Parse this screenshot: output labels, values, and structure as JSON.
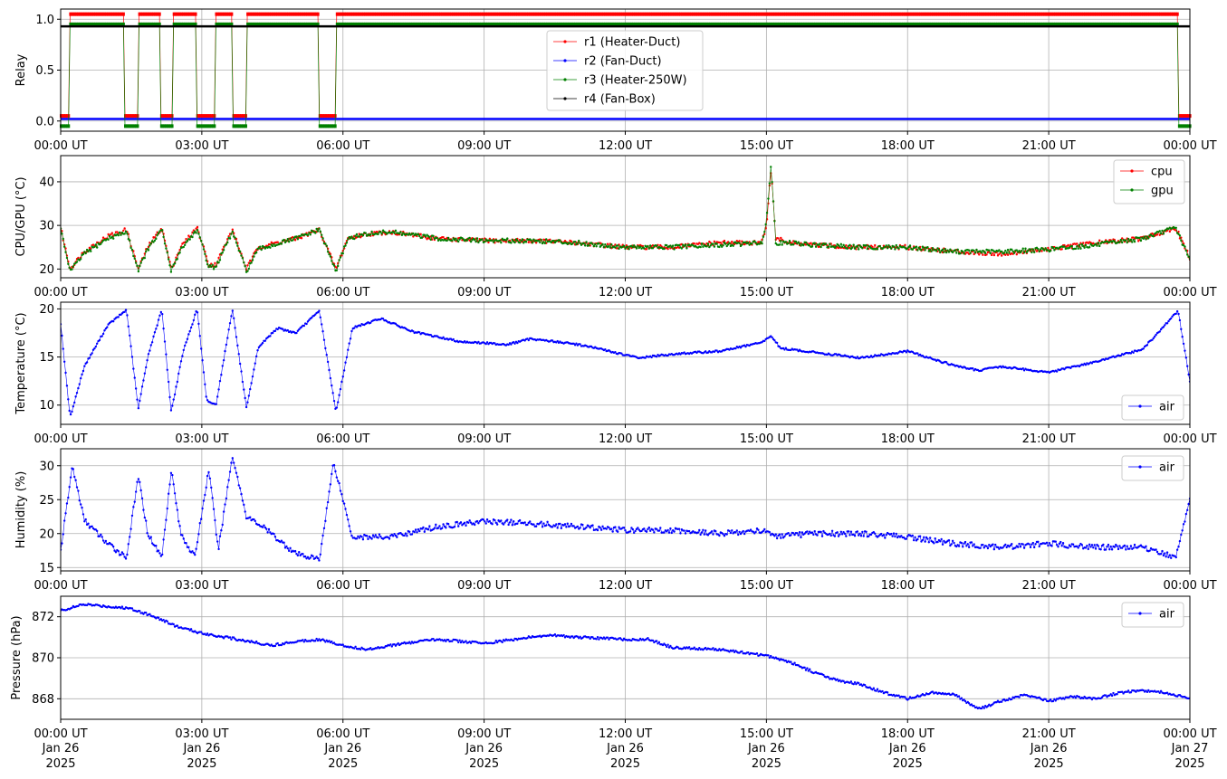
{
  "x_ticks": [
    "00:00 UT",
    "03:00 UT",
    "06:00 UT",
    "09:00 UT",
    "12:00 UT",
    "15:00 UT",
    "18:00 UT",
    "21:00 UT",
    "00:00 UT"
  ],
  "x_date_lines": [
    "Jan 26",
    "Jan 26",
    "Jan 26",
    "Jan 26",
    "Jan 26",
    "Jan 26",
    "Jan 26",
    "Jan 26",
    "Jan 27"
  ],
  "x_year_lines": [
    "2025",
    "2025",
    "2025",
    "2025",
    "2025",
    "2025",
    "2025",
    "2025",
    "2025"
  ],
  "colors": {
    "red": "#ff0000",
    "blue": "#0000ff",
    "green": "#008000",
    "black": "#000000",
    "grid": "#b0b0b0"
  },
  "chart_data": [
    {
      "type": "line",
      "ylabel": "Relay",
      "ylim": [
        -0.1,
        1.1
      ],
      "yticks": [
        0.0,
        0.5,
        1.0
      ],
      "ytick_labels": [
        "0.0",
        "0.5",
        "1.0"
      ],
      "grid": true,
      "legend_placement": "top-center",
      "x_unit": "hours since 00:00 UT Jan 26 2025",
      "xlim": [
        0,
        24
      ],
      "series": [
        {
          "name": "r1 (Heater-Duct)",
          "color": "#ff0000",
          "on_value": 1.05,
          "off_value": 0.05,
          "off_intervals": [
            [
              0,
              0.17
            ],
            [
              1.35,
              1.65
            ],
            [
              2.1,
              2.4
            ],
            [
              2.9,
              3.3
            ],
            [
              3.65,
              3.95
            ],
            [
              5.5,
              5.85
            ],
            [
              23.75,
              24
            ]
          ]
        },
        {
          "name": "r2 (Fan-Duct)",
          "color": "#0000ff",
          "constant": 0.02
        },
        {
          "name": "r3 (Heater-250W)",
          "color": "#008000",
          "on_value": 0.95,
          "off_value": -0.05,
          "off_intervals": [
            [
              0,
              0.17
            ],
            [
              1.35,
              1.65
            ],
            [
              2.1,
              2.4
            ],
            [
              2.9,
              3.3
            ],
            [
              3.65,
              3.95
            ],
            [
              5.5,
              5.85
            ],
            [
              23.75,
              24
            ]
          ]
        },
        {
          "name": "r4 (Fan-Box)",
          "color": "#000000",
          "constant": 0.93
        }
      ]
    },
    {
      "type": "line",
      "ylabel": "CPU/GPU (°C)",
      "ylim": [
        18,
        46
      ],
      "yticks": [
        20,
        30,
        40
      ],
      "ytick_labels": [
        "20",
        "30",
        "40"
      ],
      "grid": true,
      "legend_placement": "top-right",
      "xlim": [
        0,
        24
      ],
      "series": [
        {
          "name": "cpu",
          "color": "#ff0000",
          "x": [
            0,
            0.2,
            0.5,
            1.0,
            1.4,
            1.65,
            1.85,
            2.15,
            2.35,
            2.55,
            2.9,
            3.15,
            3.3,
            3.65,
            3.95,
            4.2,
            5.0,
            5.5,
            5.85,
            6.1,
            6.5,
            7.0,
            8.0,
            9.0,
            10.0,
            11.0,
            12.0,
            13.0,
            14.0,
            14.9,
            15.0,
            15.1,
            15.2,
            15.5,
            16.0,
            17.0,
            18.0,
            19.0,
            20.0,
            21.0,
            22.0,
            23.0,
            23.7,
            24.0
          ],
          "values": [
            29.5,
            20,
            24,
            27.5,
            29,
            20,
            25,
            29.5,
            20,
            25,
            29.5,
            21,
            21,
            29,
            20,
            25,
            27,
            29,
            20,
            27,
            28,
            28.5,
            27,
            26.5,
            26.5,
            26,
            25,
            25,
            26,
            26,
            30,
            43,
            27,
            26,
            25.5,
            25,
            25,
            24,
            23.5,
            24.5,
            26,
            27,
            29.5,
            22.5
          ]
        },
        {
          "name": "gpu",
          "color": "#008000",
          "x": [
            0,
            0.2,
            0.5,
            1.0,
            1.4,
            1.65,
            1.85,
            2.15,
            2.35,
            2.55,
            2.9,
            3.15,
            3.3,
            3.65,
            3.95,
            4.2,
            5.0,
            5.5,
            5.85,
            6.1,
            6.5,
            7.0,
            8.0,
            9.0,
            10.0,
            11.0,
            12.0,
            13.0,
            14.0,
            14.9,
            15.0,
            15.1,
            15.2,
            15.5,
            16.0,
            17.0,
            18.0,
            19.0,
            20.0,
            21.0,
            22.0,
            23.0,
            23.7,
            24.0
          ],
          "values": [
            29,
            19.5,
            23.5,
            27,
            28.5,
            19.8,
            24.5,
            29,
            19.5,
            24.5,
            29,
            20.5,
            20.5,
            28.5,
            19.5,
            24.5,
            27,
            29,
            19.5,
            27,
            28,
            28.5,
            27,
            26.5,
            26.5,
            26,
            25,
            25,
            25.5,
            26,
            31,
            44,
            26,
            26,
            25.5,
            25,
            25,
            24,
            24,
            24.5,
            25.5,
            27,
            29.5,
            22
          ]
        }
      ]
    },
    {
      "type": "line",
      "ylabel": "Temperature (°C)",
      "ylim": [
        8,
        20.7
      ],
      "yticks": [
        10,
        15,
        20
      ],
      "ytick_labels": [
        "10",
        "15",
        "20"
      ],
      "grid": true,
      "legend_placement": "bottom-right",
      "xlim": [
        0,
        24
      ],
      "series": [
        {
          "name": "air",
          "color": "#0000ff",
          "x": [
            0,
            0.2,
            0.5,
            1.0,
            1.4,
            1.65,
            1.85,
            2.15,
            2.35,
            2.6,
            2.9,
            3.1,
            3.3,
            3.65,
            3.95,
            4.2,
            4.6,
            5.0,
            5.5,
            5.85,
            6.2,
            6.8,
            7.5,
            8.5,
            9.5,
            10.0,
            10.5,
            11.0,
            11.5,
            12.0,
            12.3,
            13.0,
            14.0,
            14.9,
            15.1,
            15.3,
            16.0,
            17.0,
            18.0,
            19.0,
            19.5,
            20.0,
            21.0,
            22.0,
            23.0,
            23.75,
            24.0
          ],
          "values": [
            18.5,
            8.7,
            14,
            18.3,
            19.9,
            9.6,
            15,
            20,
            9.3,
            15.5,
            20,
            10.5,
            10,
            20,
            9.6,
            16,
            18,
            17.5,
            19.8,
            9.3,
            18,
            19,
            17.6,
            16.6,
            16.3,
            16.9,
            16.6,
            16.3,
            15.8,
            15.2,
            14.9,
            15.3,
            15.6,
            16.5,
            17.2,
            15.9,
            15.5,
            14.9,
            15.6,
            14.1,
            13.6,
            14,
            13.4,
            14.5,
            15.8,
            19.8,
            12.5
          ]
        }
      ]
    },
    {
      "type": "line",
      "ylabel": "Humidity (%)",
      "ylim": [
        14.5,
        32.5
      ],
      "yticks": [
        15,
        20,
        25,
        30
      ],
      "ytick_labels": [
        "15",
        "20",
        "25",
        "30"
      ],
      "grid": true,
      "legend_placement": "top-right",
      "xlim": [
        0,
        24
      ],
      "series": [
        {
          "name": "air",
          "color": "#0000ff",
          "x": [
            0,
            0.25,
            0.5,
            1.0,
            1.4,
            1.65,
            1.85,
            2.15,
            2.35,
            2.55,
            2.85,
            3.15,
            3.35,
            3.65,
            3.95,
            4.3,
            5.0,
            5.5,
            5.8,
            6.2,
            7.0,
            8.0,
            9.0,
            10.0,
            11.0,
            12.0,
            13.0,
            14.0,
            15.0,
            15.2,
            16.0,
            17.0,
            18.0,
            19.0,
            20.0,
            21.0,
            22.0,
            23.0,
            23.7,
            24.0
          ],
          "values": [
            17.5,
            30,
            22,
            18.5,
            16.5,
            28.5,
            20,
            16.5,
            29.5,
            20,
            16.5,
            29.5,
            17.5,
            31.5,
            22.5,
            21,
            17,
            16.2,
            30.5,
            19.5,
            19.5,
            21,
            21.8,
            21.5,
            21,
            20.5,
            20.5,
            20,
            20.5,
            19.5,
            20,
            20,
            19.5,
            18.5,
            18,
            18.5,
            18,
            18,
            16.5,
            25
          ]
        }
      ]
    },
    {
      "type": "line",
      "ylabel": "Pressure (hPa)",
      "ylim": [
        867,
        873
      ],
      "yticks": [
        868,
        870,
        872
      ],
      "ytick_labels": [
        "868",
        "870",
        "872"
      ],
      "grid": true,
      "legend_placement": "top-right",
      "xlim": [
        0,
        24
      ],
      "series": [
        {
          "name": "air",
          "color": "#0000ff",
          "x": [
            0,
            0.5,
            1.0,
            1.5,
            2.0,
            2.5,
            3.0,
            3.5,
            4.0,
            4.5,
            5.0,
            5.5,
            6.0,
            6.5,
            7.0,
            8.0,
            9.0,
            10.0,
            10.5,
            11.0,
            12.0,
            12.5,
            13.0,
            14.0,
            15.0,
            15.5,
            16.0,
            16.5,
            17.0,
            17.5,
            18.0,
            18.5,
            19.0,
            19.5,
            20.0,
            20.5,
            21.0,
            21.5,
            22.0,
            22.5,
            23.0,
            23.5,
            24.0
          ],
          "values": [
            872.3,
            872.6,
            872.5,
            872.4,
            872.0,
            871.5,
            871.2,
            871.0,
            870.8,
            870.6,
            870.8,
            870.9,
            870.6,
            870.4,
            870.6,
            870.9,
            870.7,
            871.0,
            871.1,
            871.0,
            870.9,
            870.9,
            870.5,
            870.4,
            870.1,
            869.8,
            869.3,
            868.9,
            868.7,
            868.3,
            868.0,
            868.3,
            868.2,
            867.5,
            867.9,
            868.2,
            867.9,
            868.1,
            868.0,
            868.3,
            868.4,
            868.3,
            868.0
          ]
        }
      ]
    }
  ]
}
